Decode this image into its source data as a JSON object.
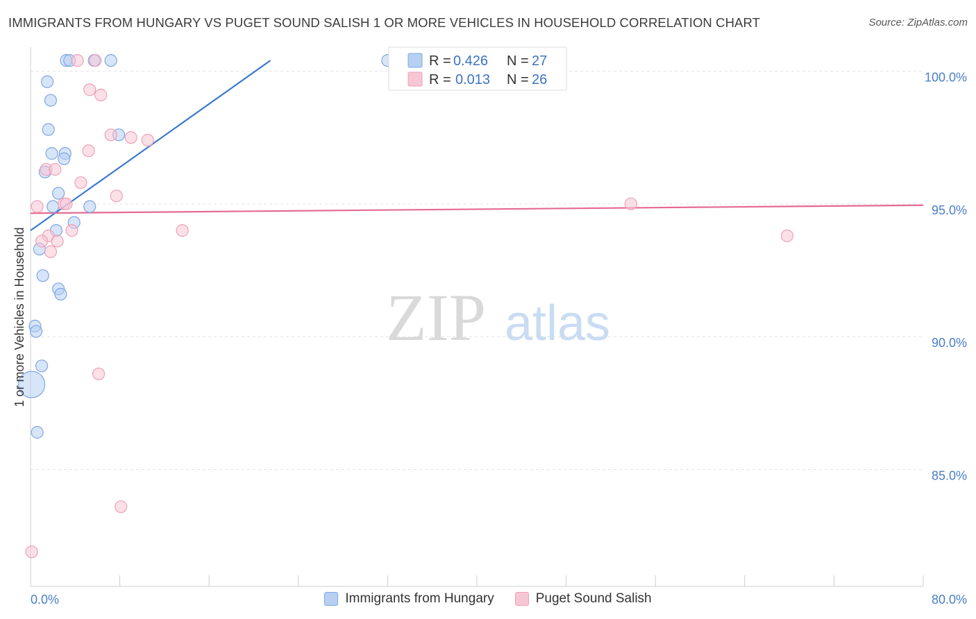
{
  "header": {
    "title": "IMMIGRANTS FROM HUNGARY VS PUGET SOUND SALISH 1 OR MORE VEHICLES IN HOUSEHOLD CORRELATION CHART",
    "source": "Source: ZipAtlas.com"
  },
  "watermark": {
    "zip": "ZIP",
    "atlas": "atlas"
  },
  "colors": {
    "blue": "#3a78d0",
    "blue_fill": "#b7d0f2",
    "blue_stroke": "#7ea6e3",
    "pink": "#e56a91",
    "pink_fill": "#f7c6d5",
    "pink_stroke": "#eea0b9"
  },
  "legend": {
    "entries": [
      {
        "r_label": "R =",
        "r_value": "0.426",
        "n_label": "N =",
        "n_value": "27"
      },
      {
        "r_label": "R =",
        "r_value": "0.013",
        "n_label": "N =",
        "n_value": "26"
      }
    ]
  },
  "chart_data": {
    "type": "scatter",
    "xlabel": "",
    "ylabel": "1 or more Vehicles in Household",
    "xlim": [
      0,
      80
    ],
    "ylim": [
      80.6,
      100.9
    ],
    "x_tick_labels": [
      "0.0%",
      "80.0%"
    ],
    "y_ticks": [
      85,
      90,
      95,
      100
    ],
    "y_tick_labels": [
      "85.0%",
      "90.0%",
      "95.0%",
      "100.0%"
    ],
    "grid": true,
    "legend_position": "top-center",
    "series": [
      {
        "name": "Immigrants from Hungary",
        "color": "blue",
        "points": [
          [
            3.2,
            100.4
          ],
          [
            3.5,
            100.4
          ],
          [
            5.7,
            100.4
          ],
          [
            7.2,
            100.4
          ],
          [
            32.0,
            100.4
          ],
          [
            1.5,
            99.6
          ],
          [
            1.8,
            98.9
          ],
          [
            1.6,
            97.8
          ],
          [
            7.9,
            97.6
          ],
          [
            1.9,
            96.9
          ],
          [
            3.1,
            96.9
          ],
          [
            3.0,
            96.7
          ],
          [
            1.3,
            96.2
          ],
          [
            2.5,
            95.4
          ],
          [
            2.0,
            94.9
          ],
          [
            5.3,
            94.9
          ],
          [
            3.9,
            94.3
          ],
          [
            2.3,
            94.0
          ],
          [
            0.8,
            93.3
          ],
          [
            1.1,
            92.3
          ],
          [
            2.5,
            91.8
          ],
          [
            2.7,
            91.6
          ],
          [
            0.4,
            90.4
          ],
          [
            0.5,
            90.2
          ],
          [
            1.0,
            88.9
          ],
          [
            0.1,
            88.2
          ],
          [
            0.6,
            86.4
          ]
        ]
      },
      {
        "name": "Puget Sound Salish",
        "color": "pink",
        "points": [
          [
            4.2,
            100.4
          ],
          [
            5.8,
            100.4
          ],
          [
            5.3,
            99.3
          ],
          [
            6.3,
            99.1
          ],
          [
            7.2,
            97.6
          ],
          [
            9.0,
            97.5
          ],
          [
            10.5,
            97.4
          ],
          [
            5.2,
            97.0
          ],
          [
            1.4,
            96.3
          ],
          [
            2.2,
            96.3
          ],
          [
            4.5,
            95.8
          ],
          [
            7.7,
            95.3
          ],
          [
            0.6,
            94.9
          ],
          [
            3.0,
            95.0
          ],
          [
            3.2,
            95.0
          ],
          [
            53.8,
            95.0
          ],
          [
            3.7,
            94.0
          ],
          [
            13.6,
            94.0
          ],
          [
            1.6,
            93.8
          ],
          [
            1.0,
            93.6
          ],
          [
            2.4,
            93.6
          ],
          [
            67.8,
            93.8
          ],
          [
            1.8,
            93.2
          ],
          [
            6.1,
            88.6
          ],
          [
            8.1,
            83.6
          ],
          [
            0.1,
            81.9
          ]
        ]
      }
    ],
    "trendlines": [
      {
        "series": "Immigrants from Hungary",
        "x": [
          0,
          21.5
        ],
        "y": [
          94.0,
          100.4
        ]
      },
      {
        "series": "Puget Sound Salish",
        "x": [
          0,
          80
        ],
        "y": [
          94.65,
          94.95
        ]
      }
    ]
  }
}
